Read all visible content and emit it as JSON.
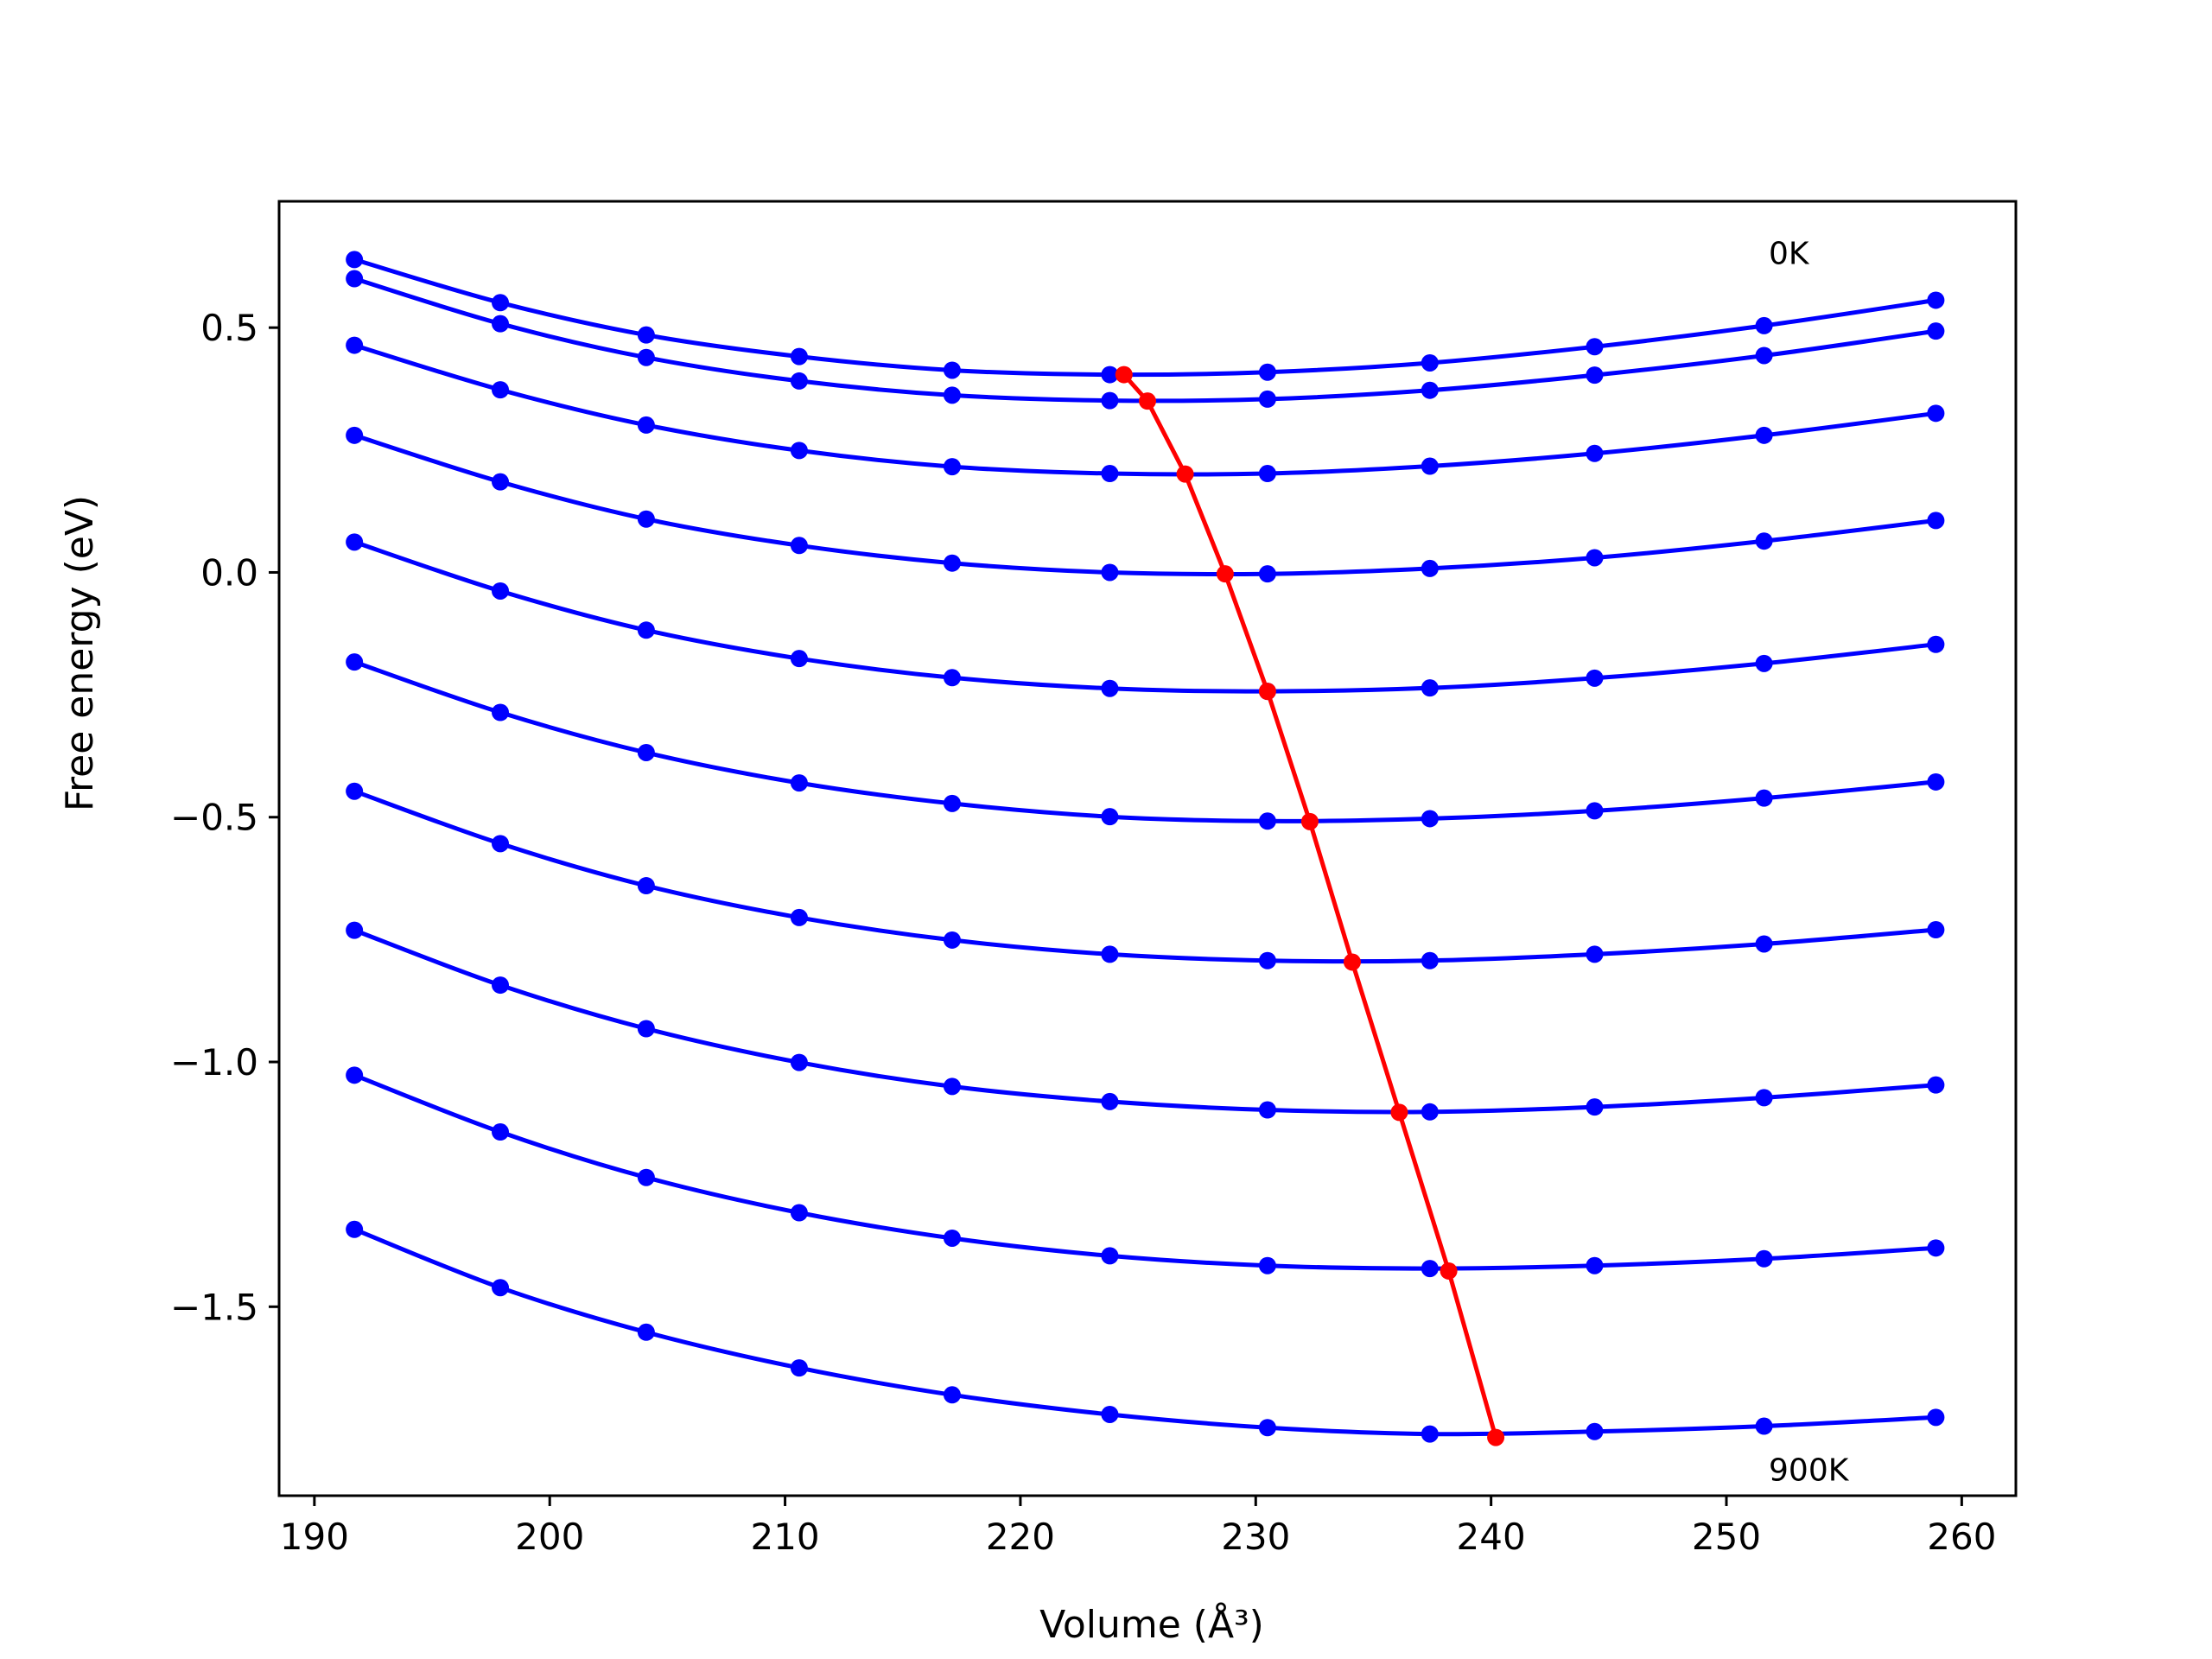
{
  "chart_data": {
    "type": "line",
    "xlabel": "Volume (Å³)",
    "ylabel": "Free energy (eV)",
    "xlim": [
      188.5,
      262.3
    ],
    "ylim": [
      -1.886,
      0.758
    ],
    "xticks": [
      190,
      200,
      210,
      220,
      230,
      240,
      250,
      260
    ],
    "xtick_labels": [
      "190",
      "200",
      "210",
      "220",
      "230",
      "240",
      "250",
      "260"
    ],
    "yticks": [
      0.5,
      0.0,
      -0.5,
      -1.0,
      -1.5
    ],
    "ytick_labels": [
      "0.5",
      "0.0",
      "−0.5",
      "−1.0",
      "−1.5"
    ],
    "grid": false,
    "annotations": [
      {
        "text": "0K",
        "x": 251.8,
        "y": 0.63
      },
      {
        "text": "900K",
        "x": 251.8,
        "y": -1.855
      }
    ],
    "x": [
      191.7,
      197.9,
      204.1,
      210.6,
      217.1,
      223.8,
      230.5,
      237.4,
      244.4,
      251.6,
      258.9
    ],
    "series": [
      {
        "color": "#0000ff",
        "values": [
          0.639,
          0.551,
          0.485,
          0.441,
          0.413,
          0.404,
          0.409,
          0.428,
          0.461,
          0.504,
          0.556
        ]
      },
      {
        "color": "#0000ff",
        "values": [
          0.6,
          0.508,
          0.439,
          0.391,
          0.362,
          0.351,
          0.354,
          0.372,
          0.403,
          0.443,
          0.493
        ]
      },
      {
        "color": "#0000ff",
        "values": [
          0.464,
          0.373,
          0.301,
          0.249,
          0.216,
          0.202,
          0.202,
          0.217,
          0.243,
          0.28,
          0.325
        ]
      },
      {
        "color": "#0000ff",
        "values": [
          0.28,
          0.185,
          0.109,
          0.055,
          0.019,
          0.0,
          -0.003,
          0.008,
          0.03,
          0.064,
          0.106
        ]
      },
      {
        "color": "#0000ff",
        "values": [
          0.062,
          -0.038,
          -0.118,
          -0.176,
          -0.215,
          -0.237,
          -0.243,
          -0.236,
          -0.216,
          -0.186,
          -0.147
        ]
      },
      {
        "color": "#0000ff",
        "values": [
          -0.183,
          -0.286,
          -0.368,
          -0.43,
          -0.472,
          -0.499,
          -0.508,
          -0.503,
          -0.487,
          -0.461,
          -0.428
        ]
      },
      {
        "color": "#0000ff",
        "values": [
          -0.447,
          -0.554,
          -0.64,
          -0.705,
          -0.751,
          -0.78,
          -0.793,
          -0.793,
          -0.78,
          -0.759,
          -0.73
        ]
      },
      {
        "color": "#0000ff",
        "values": [
          -0.731,
          -0.843,
          -0.932,
          -1.001,
          -1.05,
          -1.081,
          -1.098,
          -1.102,
          -1.092,
          -1.073,
          -1.047
        ]
      },
      {
        "color": "#0000ff",
        "values": [
          -1.027,
          -1.143,
          -1.236,
          -1.308,
          -1.36,
          -1.396,
          -1.416,
          -1.422,
          -1.416,
          -1.402,
          -1.38
        ]
      },
      {
        "color": "#0000ff",
        "values": [
          -1.342,
          -1.461,
          -1.552,
          -1.625,
          -1.68,
          -1.72,
          -1.747,
          -1.76,
          -1.755,
          -1.744,
          -1.726
        ]
      }
    ],
    "minima_series": {
      "color": "#ff0000",
      "x": [
        224.4,
        225.4,
        227.0,
        228.7,
        230.5,
        232.3,
        234.1,
        236.1,
        238.2,
        240.2
      ],
      "y": [
        0.404,
        0.35,
        0.201,
        -0.003,
        -0.243,
        -0.509,
        -0.796,
        -1.103,
        -1.427,
        -1.767
      ]
    }
  }
}
